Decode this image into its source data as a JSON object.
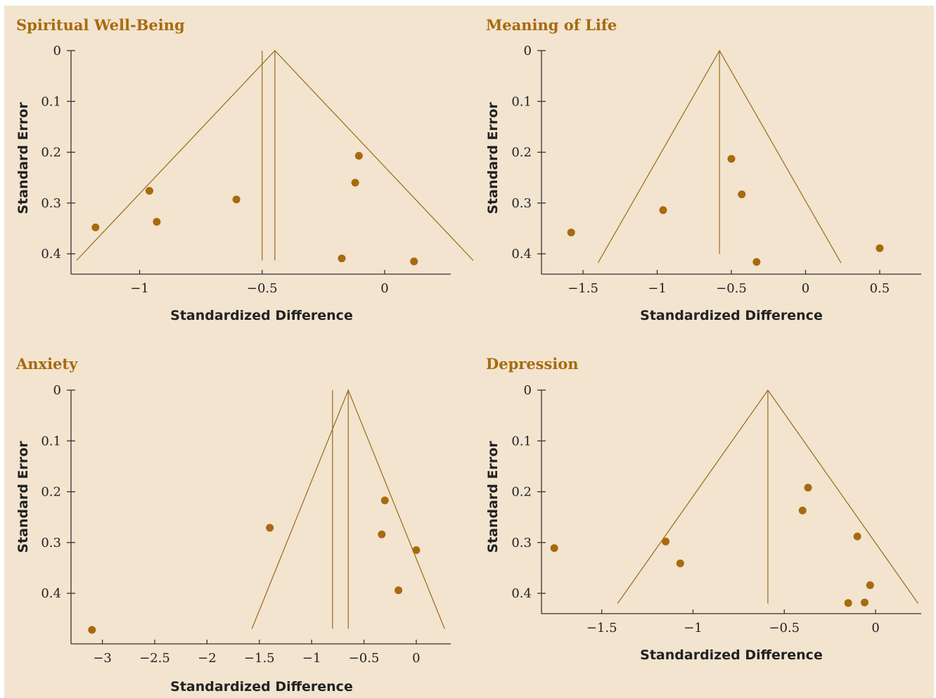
{
  "colors": {
    "background": "#f2e4cf",
    "accent": "#a86a0e",
    "funnel": "#9a6a16",
    "axis": "#333333"
  },
  "chart_data": [
    {
      "type": "scatter",
      "title": "Spiritual Well-Being",
      "xlabel": "Standardized Difference",
      "ylabel": "Standard Error",
      "xlim": [
        -1.28,
        0.27
      ],
      "ylim": [
        0,
        0.44
      ],
      "y_inverted": true,
      "xticks": [
        -1,
        -0.5,
        0
      ],
      "xtick_labels": [
        "−1",
        "−0.5",
        "0"
      ],
      "yticks": [
        0,
        0.1,
        0.2,
        0.3,
        0.4
      ],
      "ytick_labels": [
        "0",
        "0.1",
        "0.2",
        "0.3",
        "0.4"
      ],
      "funnel": {
        "apex_x": -0.448,
        "se_max": 0.413
      },
      "vlines": [
        -0.5,
        -0.448
      ],
      "points": [
        {
          "x": -1.18,
          "y": 0.348
        },
        {
          "x": -0.96,
          "y": 0.276
        },
        {
          "x": -0.93,
          "y": 0.337
        },
        {
          "x": -0.605,
          "y": 0.293
        },
        {
          "x": -0.105,
          "y": 0.207
        },
        {
          "x": -0.12,
          "y": 0.26
        },
        {
          "x": -0.175,
          "y": 0.409
        },
        {
          "x": 0.12,
          "y": 0.415
        }
      ]
    },
    {
      "type": "scatter",
      "title": "Meaning of Life",
      "xlabel": "Standardized Difference",
      "ylabel": "Standard Error",
      "xlim": [
        -1.78,
        0.78
      ],
      "ylim": [
        0,
        0.44
      ],
      "y_inverted": true,
      "xticks": [
        -1.5,
        -1,
        -0.5,
        0,
        0.5
      ],
      "xtick_labels": [
        "−1.5",
        "−1",
        "−0.5",
        "0",
        "0.5"
      ],
      "yticks": [
        0,
        0.1,
        0.2,
        0.3,
        0.4
      ],
      "ytick_labels": [
        "0",
        "0.1",
        "0.2",
        "0.3",
        "0.4"
      ],
      "funnel": {
        "apex_x": -0.58,
        "se_max": 0.418
      },
      "vlines": [
        -0.58
      ],
      "vline_se_max": 0.4,
      "points": [
        {
          "x": -1.58,
          "y": 0.358
        },
        {
          "x": -0.96,
          "y": 0.314
        },
        {
          "x": -0.5,
          "y": 0.213
        },
        {
          "x": -0.43,
          "y": 0.283
        },
        {
          "x": -0.33,
          "y": 0.416
        },
        {
          "x": 0.5,
          "y": 0.389
        }
      ]
    },
    {
      "type": "scatter",
      "title": "Anxiety",
      "xlabel": "Standardized Difference",
      "ylabel": "Standard Error",
      "xlim": [
        -3.3,
        0.33
      ],
      "ylim": [
        0,
        0.5
      ],
      "y_inverted": true,
      "xticks": [
        -3,
        -2.5,
        -2,
        -1.5,
        -1,
        -0.5,
        0
      ],
      "xtick_labels": [
        "−3",
        "−2.5",
        "−2",
        "−1.5",
        "−1",
        "−0.5",
        "0"
      ],
      "yticks": [
        0,
        0.1,
        0.2,
        0.3,
        0.4
      ],
      "ytick_labels": [
        "0",
        "0.1",
        "0.2",
        "0.3",
        "0.4"
      ],
      "funnel": {
        "apex_x": -0.65,
        "se_max": 0.47
      },
      "vlines": [
        -0.8,
        -0.65
      ],
      "points": [
        {
          "x": -3.1,
          "y": 0.472
        },
        {
          "x": -1.4,
          "y": 0.271
        },
        {
          "x": -0.3,
          "y": 0.217
        },
        {
          "x": -0.33,
          "y": 0.284
        },
        {
          "x": 0.0,
          "y": 0.315
        },
        {
          "x": -0.17,
          "y": 0.394
        }
      ]
    },
    {
      "type": "scatter",
      "title": "Depression",
      "xlabel": "Standardized Difference",
      "ylabel": "Standard Error",
      "xlim": [
        -1.83,
        0.25
      ],
      "ylim": [
        0,
        0.44
      ],
      "y_inverted": true,
      "xticks": [
        -1.5,
        -1,
        -0.5,
        0
      ],
      "xtick_labels": [
        "−1.5",
        "−1",
        "−0.5",
        "0"
      ],
      "yticks": [
        0,
        0.1,
        0.2,
        0.3,
        0.4
      ],
      "ytick_labels": [
        "0",
        "0.1",
        "0.2",
        "0.3",
        "0.4"
      ],
      "funnel": {
        "apex_x": -0.59,
        "se_max": 0.42
      },
      "vlines": [
        -0.59
      ],
      "points": [
        {
          "x": -1.76,
          "y": 0.311
        },
        {
          "x": -1.15,
          "y": 0.298
        },
        {
          "x": -1.07,
          "y": 0.341
        },
        {
          "x": -0.37,
          "y": 0.192
        },
        {
          "x": -0.4,
          "y": 0.237
        },
        {
          "x": -0.1,
          "y": 0.288
        },
        {
          "x": -0.03,
          "y": 0.384
        },
        {
          "x": -0.06,
          "y": 0.418
        },
        {
          "x": -0.15,
          "y": 0.419
        }
      ]
    }
  ]
}
